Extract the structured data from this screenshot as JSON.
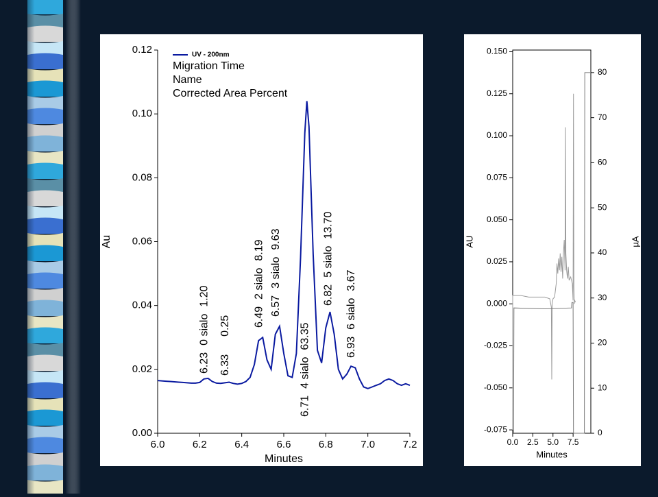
{
  "chart_data": [
    {
      "type": "line",
      "legend_header": [
        "Migration Time",
        "Name",
        "Corrected Area Percent"
      ],
      "xlabel": "Minutes",
      "ylabel": "Au",
      "xlim": [
        6.0,
        7.2
      ],
      "ylim": [
        0,
        0.12
      ],
      "xticks": [
        {
          "value": 6.0,
          "label": "6.0"
        },
        6.2,
        6.4,
        6.6,
        6.8,
        {
          "value": 7.0,
          "label": "7.0"
        },
        7.2
      ],
      "yticks": [
        {
          "value": 0,
          "label": "0.00"
        },
        0.02,
        0.04,
        0.06,
        0.08,
        {
          "value": 0.1,
          "label": "0.10"
        },
        0.12
      ],
      "x": [
        6.0,
        6.02,
        6.04,
        6.06,
        6.08,
        6.1,
        6.12,
        6.14,
        6.16,
        6.18,
        6.2,
        6.22,
        6.24,
        6.26,
        6.28,
        6.3,
        6.32,
        6.34,
        6.36,
        6.38,
        6.4,
        6.42,
        6.44,
        6.46,
        6.48,
        6.5,
        6.52,
        6.54,
        6.56,
        6.58,
        6.6,
        6.62,
        6.64,
        6.66,
        6.68,
        6.7,
        6.71,
        6.72,
        6.74,
        6.76,
        6.78,
        6.8,
        6.82,
        6.84,
        6.86,
        6.88,
        6.9,
        6.92,
        6.94,
        6.96,
        6.98,
        7.0,
        7.02,
        7.04,
        7.06,
        7.08,
        7.1,
        7.12,
        7.14,
        7.16,
        7.18,
        7.2
      ],
      "series": [
        {
          "name": "UV - 200nm",
          "color": "#0a1aa0",
          "values": [
            0.0165,
            0.0164,
            0.0163,
            0.0162,
            0.0161,
            0.016,
            0.0159,
            0.0158,
            0.0157,
            0.0157,
            0.0159,
            0.017,
            0.0172,
            0.0162,
            0.0157,
            0.0156,
            0.0158,
            0.016,
            0.0156,
            0.0154,
            0.0156,
            0.0162,
            0.0175,
            0.0215,
            0.029,
            0.03,
            0.023,
            0.02,
            0.031,
            0.0335,
            0.025,
            0.018,
            0.0175,
            0.025,
            0.055,
            0.094,
            0.104,
            0.096,
            0.056,
            0.026,
            0.022,
            0.033,
            0.038,
            0.031,
            0.02,
            0.017,
            0.0185,
            0.021,
            0.0205,
            0.017,
            0.0145,
            0.014,
            0.0145,
            0.015,
            0.0155,
            0.0165,
            0.017,
            0.0165,
            0.0155,
            0.015,
            0.0155,
            0.015
          ]
        }
      ],
      "peaks": [
        {
          "time": 6.23,
          "name": "0 sialo",
          "area": {
            "value": 1.2,
            "label": "1.20"
          }
        },
        {
          "time": 6.33,
          "area": 0.25
        },
        {
          "time": 6.49,
          "name": "2 sialo",
          "area": 8.19
        },
        {
          "time": 6.57,
          "name": "3 sialo",
          "area": 9.63
        },
        {
          "time": 6.71,
          "name": "4 sialo",
          "area": 63.35
        },
        {
          "time": 6.82,
          "name": "5 sialo",
          "area": {
            "value": 13.7,
            "label": "13.70"
          }
        },
        {
          "time": 6.93,
          "name": "6 sialo",
          "area": 3.67
        }
      ]
    },
    {
      "type": "line",
      "xlabel": "Minutes",
      "ylabel": "AU",
      "y2label": "µA",
      "xlim": [
        0,
        9.7
      ],
      "ylim": [
        -0.077,
        0.151
      ],
      "y2lim": [
        0,
        85
      ],
      "xticks": [
        {
          "value": 0,
          "label": "0.0"
        },
        2.5,
        {
          "value": 5,
          "label": "5.0"
        },
        7.5
      ],
      "yticks": [
        {
          "value": -0.075,
          "label": "-0.075"
        },
        {
          "value": -0.05,
          "label": "-0.050"
        },
        -0.025,
        {
          "value": 0,
          "label": "0.000"
        },
        0.025,
        {
          "value": 0.05,
          "label": "0.050"
        },
        0.075,
        {
          "value": 0.1,
          "label": "0.100"
        },
        0.125,
        {
          "value": 0.15,
          "label": "0.150"
        }
      ],
      "y2ticks": [
        0,
        10,
        20,
        30,
        40,
        50,
        60,
        70,
        80
      ],
      "series": [
        {
          "color": "#9a9a9a",
          "x": [
            0,
            0,
            0.3,
            1,
            2,
            3,
            4,
            4.6,
            4.8,
            4.85,
            4.9,
            5.0,
            5.2,
            5.4,
            5.5,
            5.6,
            5.7,
            5.8,
            5.9,
            6.0,
            6.1,
            6.2,
            6.3,
            6.4,
            6.5,
            6.55,
            6.6,
            6.7,
            6.8,
            6.9,
            7.0,
            7.2,
            7.4,
            7.5,
            7.55,
            7.6,
            7.65,
            7.7,
            7.8
          ],
          "values": [
            -0.075,
            0.005,
            0.005,
            0.005,
            0.004,
            0.004,
            0.004,
            0.003,
            -0.002,
            -0.045,
            0.0,
            0.003,
            0.004,
            0.012,
            0.024,
            0.018,
            0.027,
            0.02,
            0.03,
            0.019,
            0.028,
            0.015,
            0.03,
            0.038,
            0.02,
            0.105,
            0.03,
            0.02,
            0.015,
            0.022,
            0.014,
            0.016,
            0.012,
            0.002,
            0.125,
            0.01,
            0.0,
            0.002,
            0.001
          ]
        },
        {
          "color": "#777777",
          "axis": "y2",
          "x": [
            0.1,
            0.15,
            4,
            7.3,
            7.35,
            7.5,
            7.55,
            8.9,
            8.95,
            9.7
          ],
          "values": [
            0,
            27.8,
            27.6,
            27.8,
            29,
            29,
            0,
            0,
            80,
            80
          ]
        }
      ]
    }
  ]
}
